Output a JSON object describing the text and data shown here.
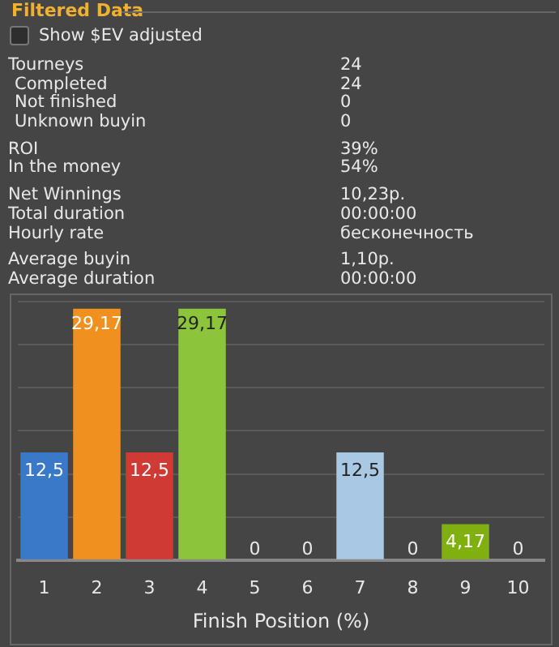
{
  "chart_data": {
    "type": "bar",
    "title": "Filtered Data",
    "xlabel": "Finish Position (%)",
    "categories": [
      "1",
      "2",
      "3",
      "4",
      "5",
      "6",
      "7",
      "8",
      "9",
      "10"
    ],
    "values": [
      12.5,
      29.17,
      12.5,
      29.17,
      0,
      0,
      12.5,
      0,
      4.17,
      0
    ],
    "value_labels": [
      "12,5",
      "29,17",
      "12,5",
      "29,17",
      "0",
      "0",
      "12,5",
      "0",
      "4,17",
      "0"
    ],
    "colors": [
      "#3a78c8",
      "#f0901e",
      "#d03a35",
      "#8cc43c",
      "#888888",
      "#888888",
      "#a8c8e4",
      "#888888",
      "#80b010",
      "#888888"
    ],
    "ylim": [
      0,
      30
    ],
    "yticks": [
      {
        "value": 0,
        "label": null
      },
      {
        "value": 5,
        "label": null
      },
      {
        "value": 10,
        "label": null
      },
      {
        "value": 15,
        "label": null
      },
      {
        "value": 20,
        "label": null
      },
      {
        "value": 25,
        "label": null
      },
      {
        "value": 30,
        "label": null
      }
    ],
    "grid": "y",
    "tick_labels": "x",
    "legend": false,
    "annotations": [
      "Show $EV adjusted",
      "Tourneys",
      "24",
      "Completed",
      "24",
      "Not finished",
      "0",
      "Unknown buyin",
      "0",
      "ROI",
      "39%",
      "In the money",
      "54%",
      "Net Winnings",
      "10,23р.",
      "Total duration",
      "00:00:00",
      "Hourly rate",
      "бесконечность",
      "Average buyin",
      "1,10р.",
      "Average duration",
      "00:00:00"
    ]
  }
}
